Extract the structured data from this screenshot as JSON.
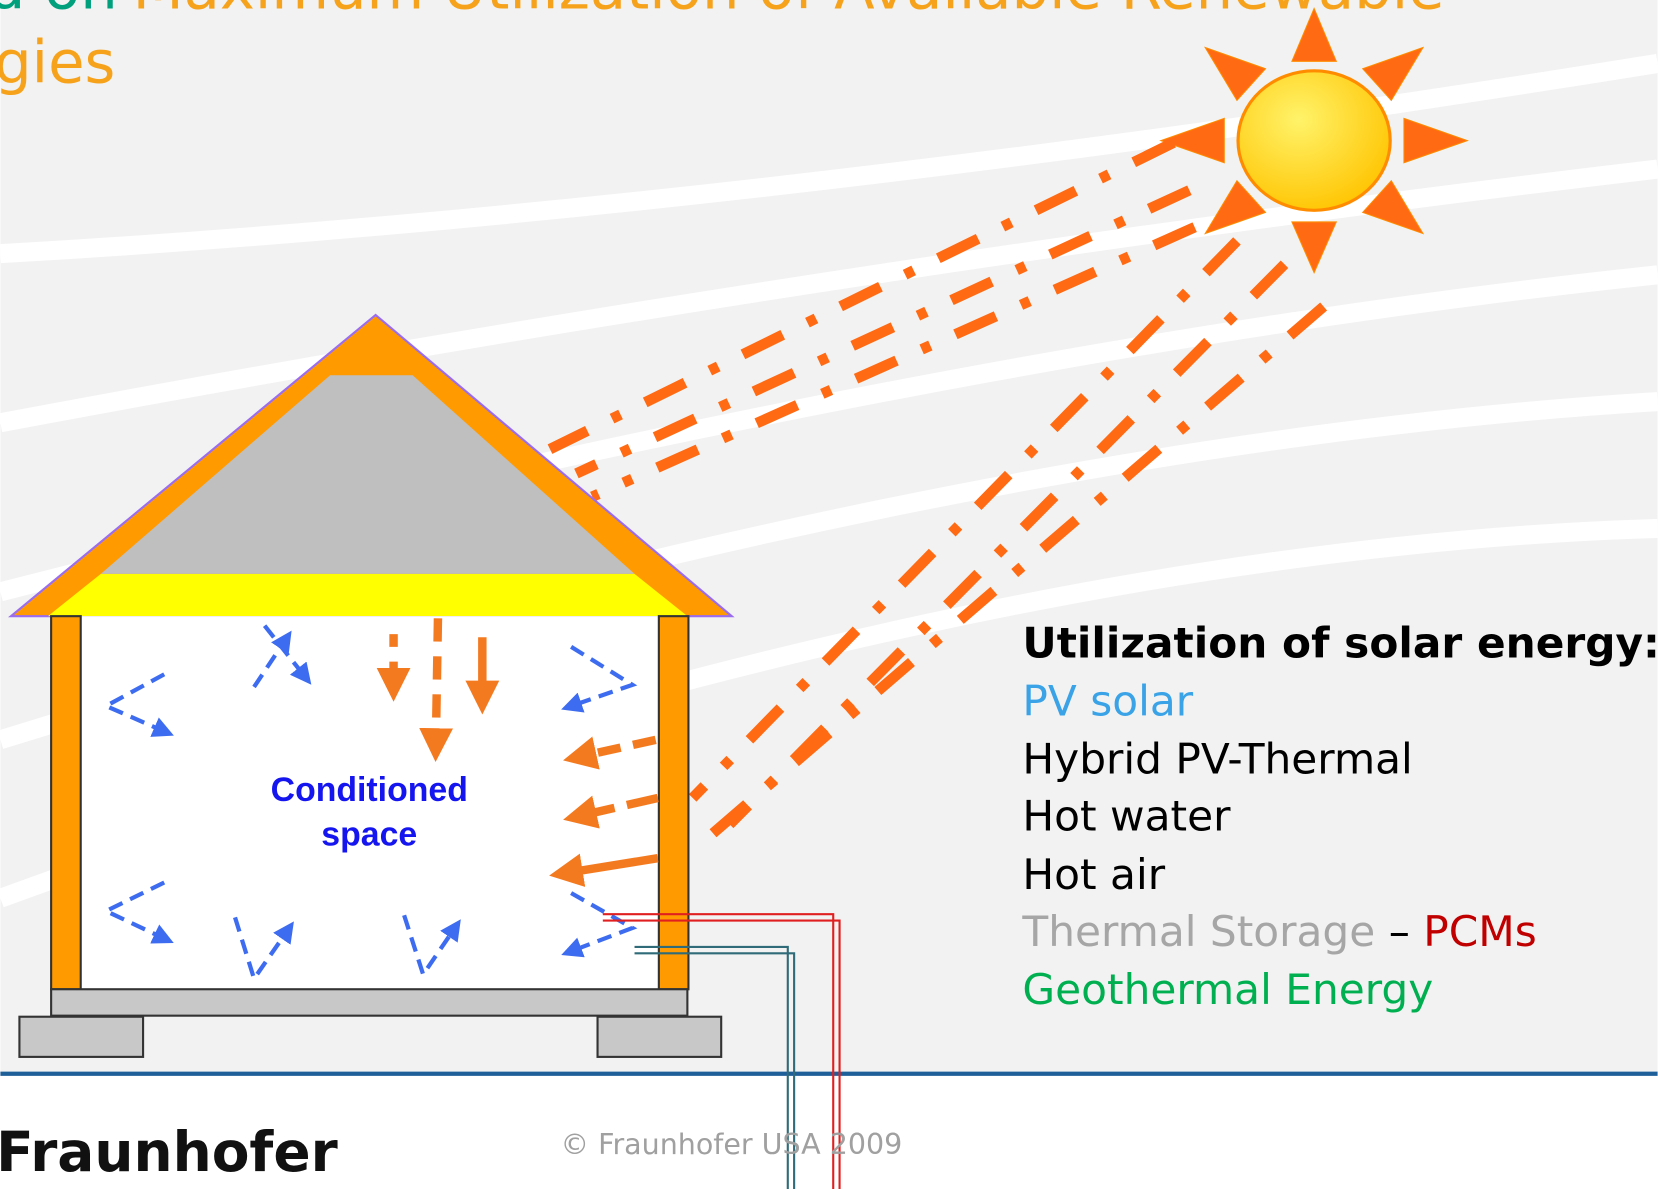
{
  "header": {
    "title_prefix": "d on",
    "title_line1": "Maximum Utilization of Available Renewable",
    "title_line2": "gies"
  },
  "diagram": {
    "space_label": [
      "Conditioned",
      "space"
    ]
  },
  "list": {
    "heading": "Utilization of solar energy:",
    "items": [
      "PV solar",
      "Hybrid PV-Thermal",
      "Hot water",
      "Hot air"
    ],
    "storage": "Thermal Storage",
    "dash": "–",
    "pcms": "PCMs",
    "last": "Geothermal Energy"
  },
  "footer": {
    "brand": "Fraunhofer",
    "copyright": "© Fraunhofer USA 2009"
  }
}
